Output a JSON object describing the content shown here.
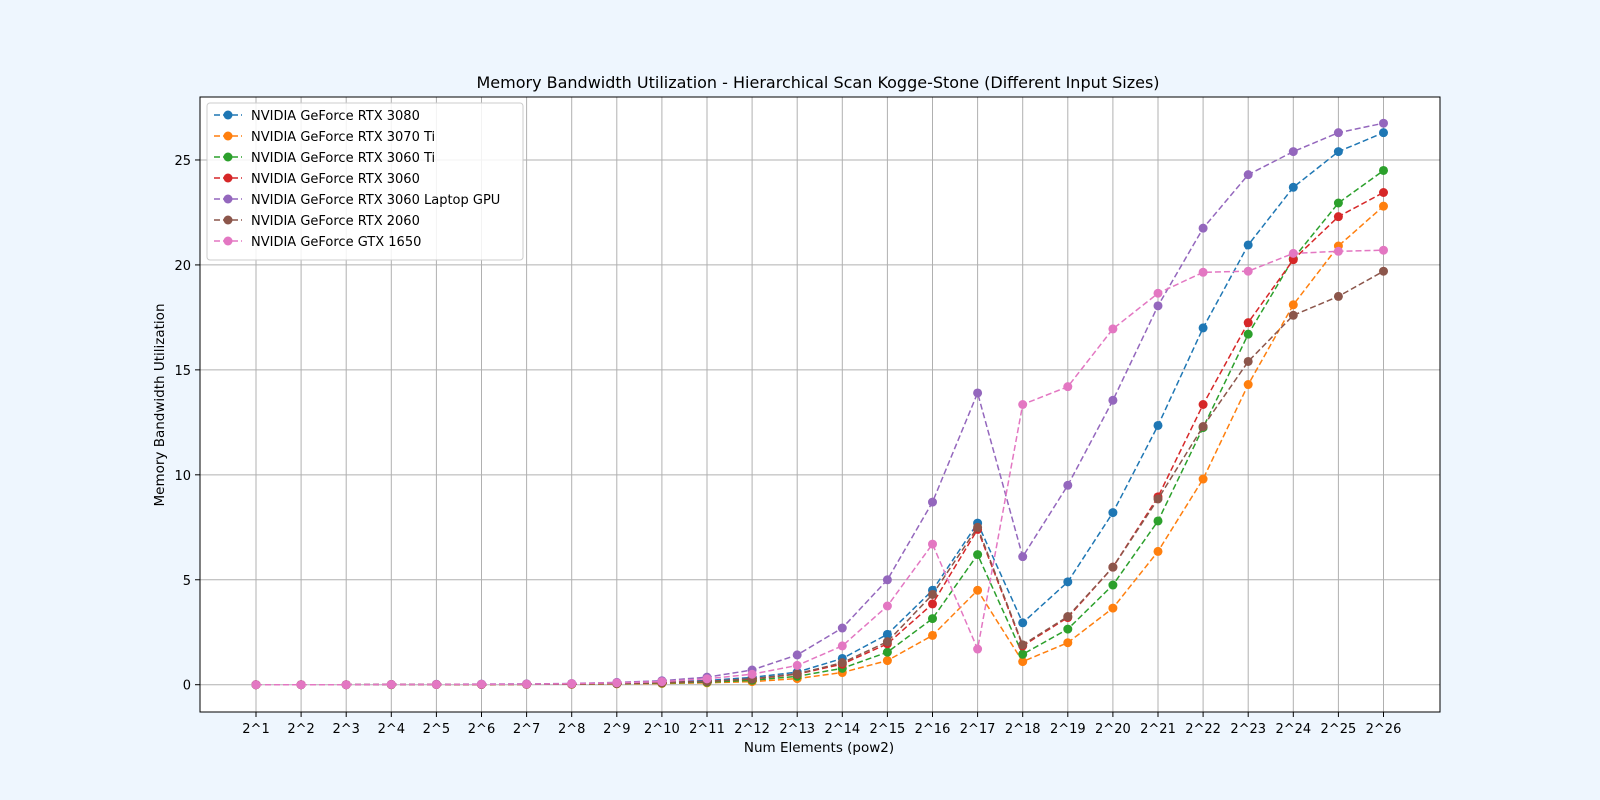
{
  "chart_data": {
    "type": "line",
    "title": "Memory Bandwidth Utilization - Hierarchical Scan Kogge-Stone (Different Input Sizes)",
    "xlabel": "Num Elements (pow2)",
    "ylabel": "Memory Bandwidth Utilization",
    "categories": [
      "2^1",
      "2^2",
      "2^3",
      "2^4",
      "2^5",
      "2^6",
      "2^7",
      "2^8",
      "2^9",
      "2^10",
      "2^11",
      "2^12",
      "2^13",
      "2^14",
      "2^15",
      "2^16",
      "2^17",
      "2^18",
      "2^19",
      "2^20",
      "2^21",
      "2^22",
      "2^23",
      "2^24",
      "2^25",
      "2^26"
    ],
    "yticks": [
      0,
      5,
      10,
      15,
      20,
      25
    ],
    "ylim": [
      -1.3,
      28.0
    ],
    "grid": true,
    "legend_position": "top-left",
    "line_style": "dashed",
    "marker": "circle",
    "series": [
      {
        "name": "NVIDIA GeForce RTX 3080",
        "color": "#1f77b4",
        "values": [
          0.0,
          0.0,
          0.0,
          0.01,
          0.01,
          0.02,
          0.03,
          0.04,
          0.08,
          0.13,
          0.2,
          0.35,
          0.6,
          1.25,
          2.4,
          4.5,
          7.7,
          2.95,
          4.9,
          8.2,
          12.35,
          17.0,
          20.95,
          23.7,
          25.4,
          26.3
        ]
      },
      {
        "name": "NVIDIA GeForce RTX 3070 Ti",
        "color": "#ff7f0e",
        "values": [
          0.0,
          0.0,
          0.0,
          0.0,
          0.01,
          0.01,
          0.02,
          0.02,
          0.04,
          0.06,
          0.09,
          0.15,
          0.29,
          0.58,
          1.15,
          2.35,
          4.5,
          1.1,
          2.0,
          3.65,
          6.35,
          9.8,
          14.3,
          18.1,
          20.9,
          22.8
        ]
      },
      {
        "name": "NVIDIA GeForce RTX 3060 Ti",
        "color": "#2ca02c",
        "values": [
          0.0,
          0.0,
          0.0,
          0.0,
          0.01,
          0.01,
          0.02,
          0.03,
          0.05,
          0.08,
          0.12,
          0.21,
          0.4,
          0.78,
          1.55,
          3.15,
          6.2,
          1.45,
          2.65,
          4.75,
          7.8,
          12.25,
          16.7,
          20.3,
          22.95,
          24.5
        ]
      },
      {
        "name": "NVIDIA GeForce RTX 3060",
        "color": "#d62728",
        "values": [
          0.0,
          0.0,
          0.0,
          0.01,
          0.01,
          0.01,
          0.02,
          0.03,
          0.06,
          0.1,
          0.16,
          0.27,
          0.5,
          0.98,
          1.95,
          3.85,
          7.4,
          1.85,
          3.2,
          5.6,
          8.95,
          13.35,
          17.25,
          20.25,
          22.3,
          23.45
        ]
      },
      {
        "name": "NVIDIA GeForce RTX 3060 Laptop GPU",
        "color": "#9467bd",
        "values": [
          0.0,
          0.0,
          0.0,
          0.01,
          0.02,
          0.03,
          0.04,
          0.06,
          0.11,
          0.19,
          0.36,
          0.7,
          1.42,
          2.7,
          5.0,
          8.7,
          13.9,
          6.1,
          9.5,
          13.55,
          18.05,
          21.75,
          24.3,
          25.4,
          26.3,
          26.75
        ]
      },
      {
        "name": "NVIDIA GeForce RTX 2060",
        "color": "#8c564b",
        "values": [
          0.0,
          0.0,
          0.0,
          0.01,
          0.01,
          0.01,
          0.02,
          0.03,
          0.06,
          0.1,
          0.16,
          0.28,
          0.52,
          1.05,
          2.05,
          4.3,
          7.5,
          1.9,
          3.25,
          5.6,
          8.85,
          12.3,
          15.4,
          17.6,
          18.5,
          19.7
        ]
      },
      {
        "name": "NVIDIA GeForce GTX 1650",
        "color": "#e377c2",
        "values": [
          0.0,
          0.0,
          0.0,
          0.01,
          0.01,
          0.02,
          0.03,
          0.05,
          0.09,
          0.15,
          0.28,
          0.5,
          0.92,
          1.85,
          3.75,
          6.7,
          1.7,
          13.35,
          14.2,
          16.95,
          18.65,
          19.65,
          19.7,
          20.55,
          20.65,
          20.7
        ]
      }
    ]
  }
}
